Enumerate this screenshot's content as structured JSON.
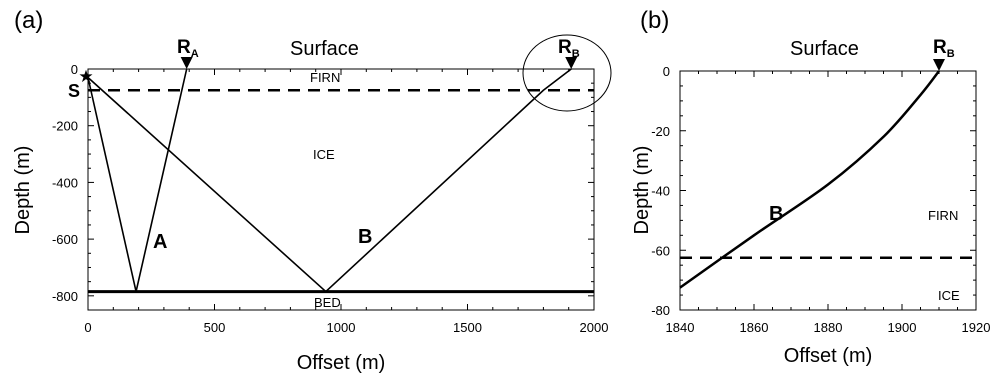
{
  "panel_a": {
    "panel_label": "(a)",
    "surface_label": "Surface",
    "receiver_a": {
      "main": "R",
      "sub": "A"
    },
    "receiver_b": {
      "main": "R",
      "sub": "B"
    },
    "source_label": "S",
    "firn_label": "FIRN",
    "ice_label": "ICE",
    "bed_label": "BED",
    "ray_a_label": "A",
    "ray_b_label": "B",
    "xlabel": "Offset (m)",
    "ylabel": "Depth (m)",
    "xticks": [
      "0",
      "500",
      "1000",
      "1500",
      "2000"
    ],
    "yticks": [
      "0",
      "-200",
      "-400",
      "-600",
      "-800"
    ]
  },
  "panel_b": {
    "panel_label": "(b)",
    "surface_label": "Surface",
    "receiver_b": {
      "main": "R",
      "sub": "B"
    },
    "firn_label": "FIRN",
    "ice_label": "ICE",
    "ray_b_label": "B",
    "xlabel": "Offset (m)",
    "ylabel": "Depth (m)",
    "xticks": [
      "1840",
      "1860",
      "1880",
      "1900",
      "1920"
    ],
    "yticks": [
      "0",
      "-20",
      "-40",
      "-60",
      "-80"
    ]
  },
  "chart_data": [
    {
      "type": "line",
      "xlim": [
        0,
        2000
      ],
      "ylim": [
        -850,
        0
      ],
      "firn_base_depth": -75,
      "bed_depth": -785,
      "source": [
        0,
        -30
      ],
      "receivers": {
        "A": [
          390,
          0
        ],
        "B": [
          1910,
          0
        ]
      },
      "series": [
        {
          "name": "A",
          "x": [
            0,
            190,
            390
          ],
          "y": [
            -30,
            -785,
            0
          ]
        },
        {
          "name": "B",
          "x": [
            0,
            940,
            1800,
            1910
          ],
          "y": [
            -30,
            -785,
            -75,
            0
          ]
        }
      ]
    },
    {
      "type": "line",
      "xlim": [
        1840,
        1920
      ],
      "ylim": [
        -80,
        0
      ],
      "firn_base_depth": -62.5,
      "receivers": {
        "B": [
          1910,
          0
        ]
      },
      "series": [
        {
          "name": "B",
          "x": [
            1840,
            1860,
            1880,
            1895,
            1905,
            1910
          ],
          "y": [
            -72.5,
            -55,
            -38,
            -22,
            -8,
            0
          ]
        }
      ]
    }
  ]
}
